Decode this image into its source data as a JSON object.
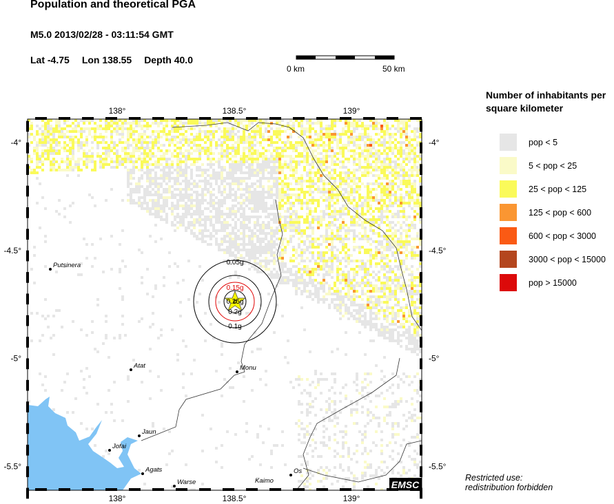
{
  "header": {
    "title": "Population and theoretical PGA",
    "event": "M5.0  2013/02/28 - 03:11:54 GMT",
    "lat": "Lat -4.75",
    "lon": "Lon 138.55",
    "depth": "Depth  40.0"
  },
  "scale_bar": {
    "start": "0 km",
    "end": "50 km"
  },
  "map": {
    "lon_ticks": [
      "138°",
      "138.5°",
      "139°"
    ],
    "lat_ticks": [
      "-4°",
      "-4.5°",
      "-5°",
      "-5.5°"
    ],
    "epicenter": {
      "lat": -4.75,
      "lon": 138.55
    },
    "pga_contours": [
      {
        "label": "0.05g",
        "color": "#000000"
      },
      {
        "label": "0.1g",
        "color": "#000000"
      },
      {
        "label": "0.15g",
        "color": "#e00000"
      },
      {
        "label": "0.2g",
        "color": "#000000"
      },
      {
        "label": "0.25g",
        "color": "#000000"
      }
    ],
    "cities": [
      {
        "name": "Putsinera"
      },
      {
        "name": "Atat"
      },
      {
        "name": "Monu"
      },
      {
        "name": "Jaun"
      },
      {
        "name": "Jofai"
      },
      {
        "name": "Agats"
      },
      {
        "name": "Warse"
      },
      {
        "name": "Kaimo"
      },
      {
        "name": "Os"
      }
    ],
    "ocean_color": "#80c4f5",
    "logo": "EMSC"
  },
  "legend": {
    "title": "Number of inhabitants per square kilometer",
    "items": [
      {
        "label": "pop < 5",
        "color": "#e6e6e6"
      },
      {
        "label": "5 < pop < 25",
        "color": "#fafac8"
      },
      {
        "label": "25 < pop < 125",
        "color": "#fafa5a"
      },
      {
        "label": "125 < pop < 600",
        "color": "#fa9632"
      },
      {
        "label": "600 < pop < 3000",
        "color": "#fa5a14"
      },
      {
        "label": "3000 < pop < 15000",
        "color": "#b4461e"
      },
      {
        "label": "pop > 15000",
        "color": "#dc0a0a"
      }
    ]
  },
  "footer": {
    "restricted": "Restricted use:",
    "redistribution": "redistribution forbidden"
  }
}
